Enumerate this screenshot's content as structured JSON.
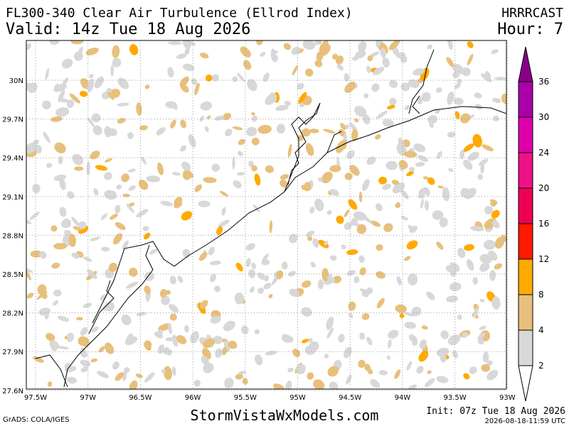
{
  "header": {
    "title": "FL300-340 Clear Air Turbulence (Ellrod Index)",
    "valid": "Valid: 14z Tue 18 Aug 2026",
    "model": "HRRRCAST",
    "hour": "Hour: 7"
  },
  "map": {
    "lon_labels": [
      "97.5W",
      "97W",
      "96.5W",
      "96W",
      "95.5W",
      "95W",
      "94.5W",
      "94W",
      "93.5W",
      "93W"
    ],
    "lat_labels": [
      "30N",
      "29.7N",
      "29.4N",
      "29.1N",
      "28.8N",
      "28.5N",
      "28.2N",
      "27.9N",
      "27.6N"
    ]
  },
  "colorbar": {
    "levels": [
      2,
      4,
      8,
      12,
      16,
      20,
      24,
      30,
      36
    ],
    "colors": [
      "#d8d8d8",
      "#e8c07c",
      "#ffaa00",
      "#ff1a00",
      "#ee0055",
      "#ee1188",
      "#dd00aa",
      "#aa00aa",
      "#880088"
    ]
  },
  "footer": {
    "credit": "GrADS: COLA/IGES",
    "site": "StormVistaWxModels.com",
    "init": "Init: 07z Tue 18 Aug 2026",
    "stamp": "2026-08-18-11:59 UTC"
  }
}
